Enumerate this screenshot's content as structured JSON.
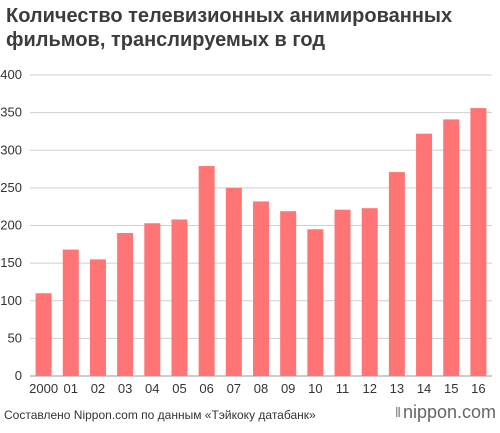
{
  "title": "Количество телевизионных анимированных фильмов, транслируемых в год",
  "source": "Составлено Nippon.com по данным «Тэйкоку датабанк»",
  "logo": {
    "icon": "nippon-logo-mark",
    "text": "nippon.com"
  },
  "colors": {
    "bar": "#ff7474",
    "grid": "#cfcfcf",
    "text": "#333333"
  },
  "chart_data": {
    "type": "bar",
    "title": "Количество телевизионных анимированных фильмов, транслируемых в год",
    "xlabel": "",
    "ylabel": "",
    "categories": [
      "2000",
      "01",
      "02",
      "03",
      "04",
      "05",
      "06",
      "07",
      "08",
      "09",
      "10",
      "11",
      "12",
      "13",
      "14",
      "15",
      "16"
    ],
    "values": [
      110,
      168,
      155,
      190,
      203,
      208,
      279,
      250,
      232,
      219,
      195,
      221,
      223,
      271,
      322,
      341,
      356
    ],
    "ylim": [
      0,
      400
    ],
    "yticks": [
      0,
      50,
      100,
      150,
      200,
      250,
      300,
      350,
      400
    ],
    "grid": true,
    "legend": "none"
  }
}
